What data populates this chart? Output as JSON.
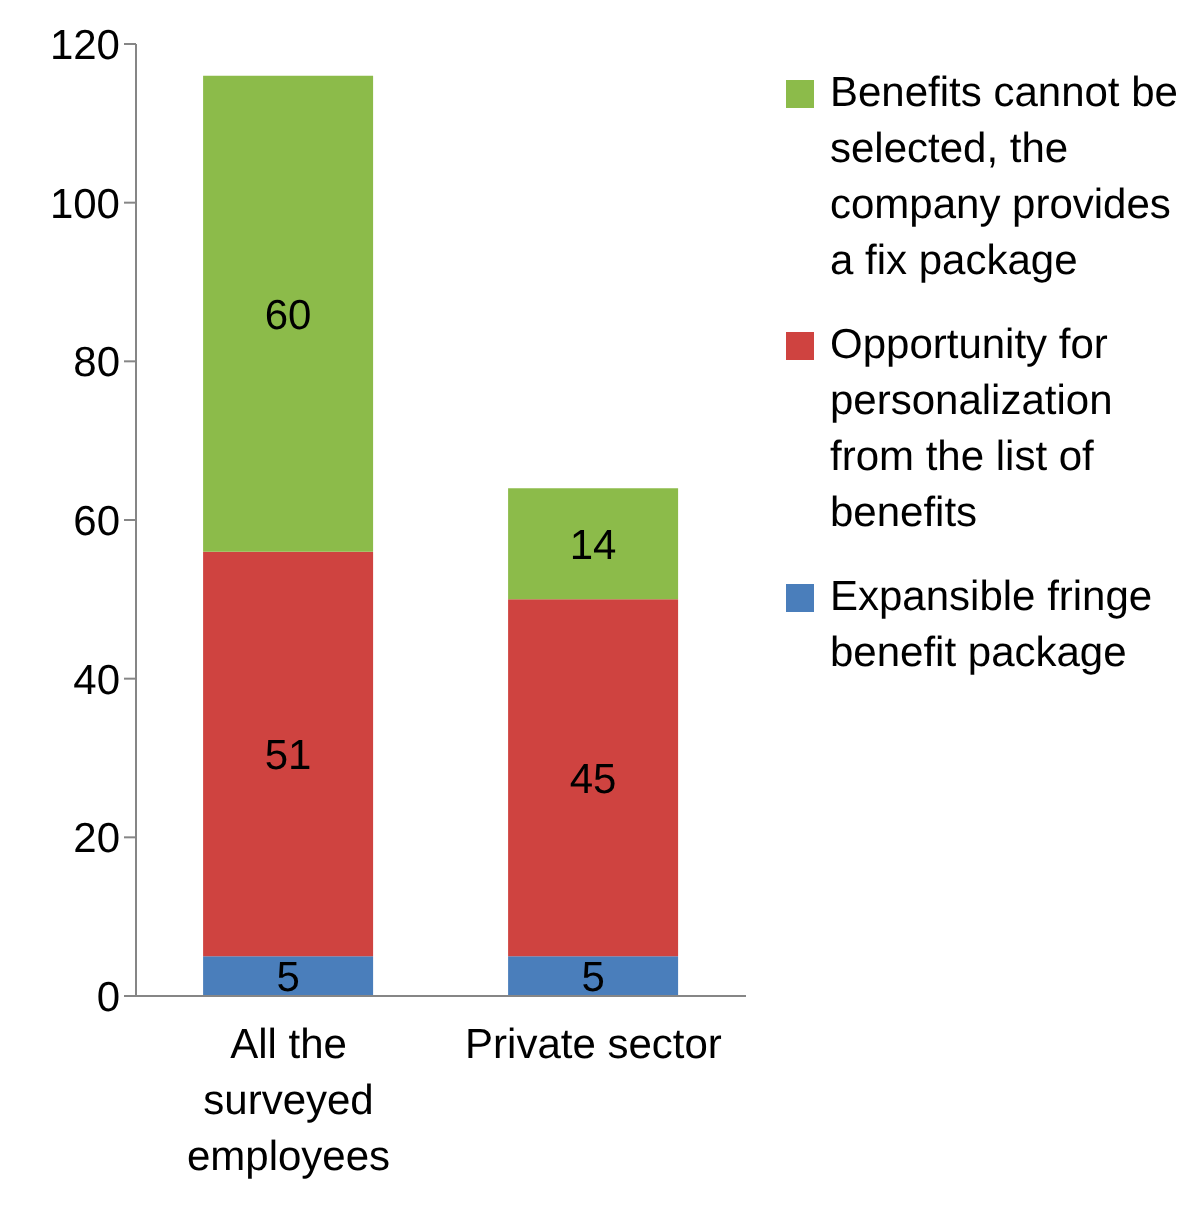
{
  "chart_data": {
    "type": "bar",
    "stacked": true,
    "categories": [
      "All the surveyed employees",
      "Private sector"
    ],
    "series": [
      {
        "name": "Expansible fringe benefit package",
        "color": "#4a7ebb",
        "values": [
          5,
          5
        ]
      },
      {
        "name": "Opportunity for personalization from the list of benefits",
        "color": "#cf4340",
        "values": [
          51,
          45
        ]
      },
      {
        "name": "Benefits cannot be selected, the company provides a fix package",
        "color": "#8cbb4a",
        "values": [
          60,
          14
        ]
      }
    ],
    "ylim": [
      0,
      120
    ],
    "yticks": [
      0,
      20,
      40,
      60,
      80,
      100,
      120
    ],
    "data_labels": true,
    "legend": "right",
    "grid": false
  }
}
